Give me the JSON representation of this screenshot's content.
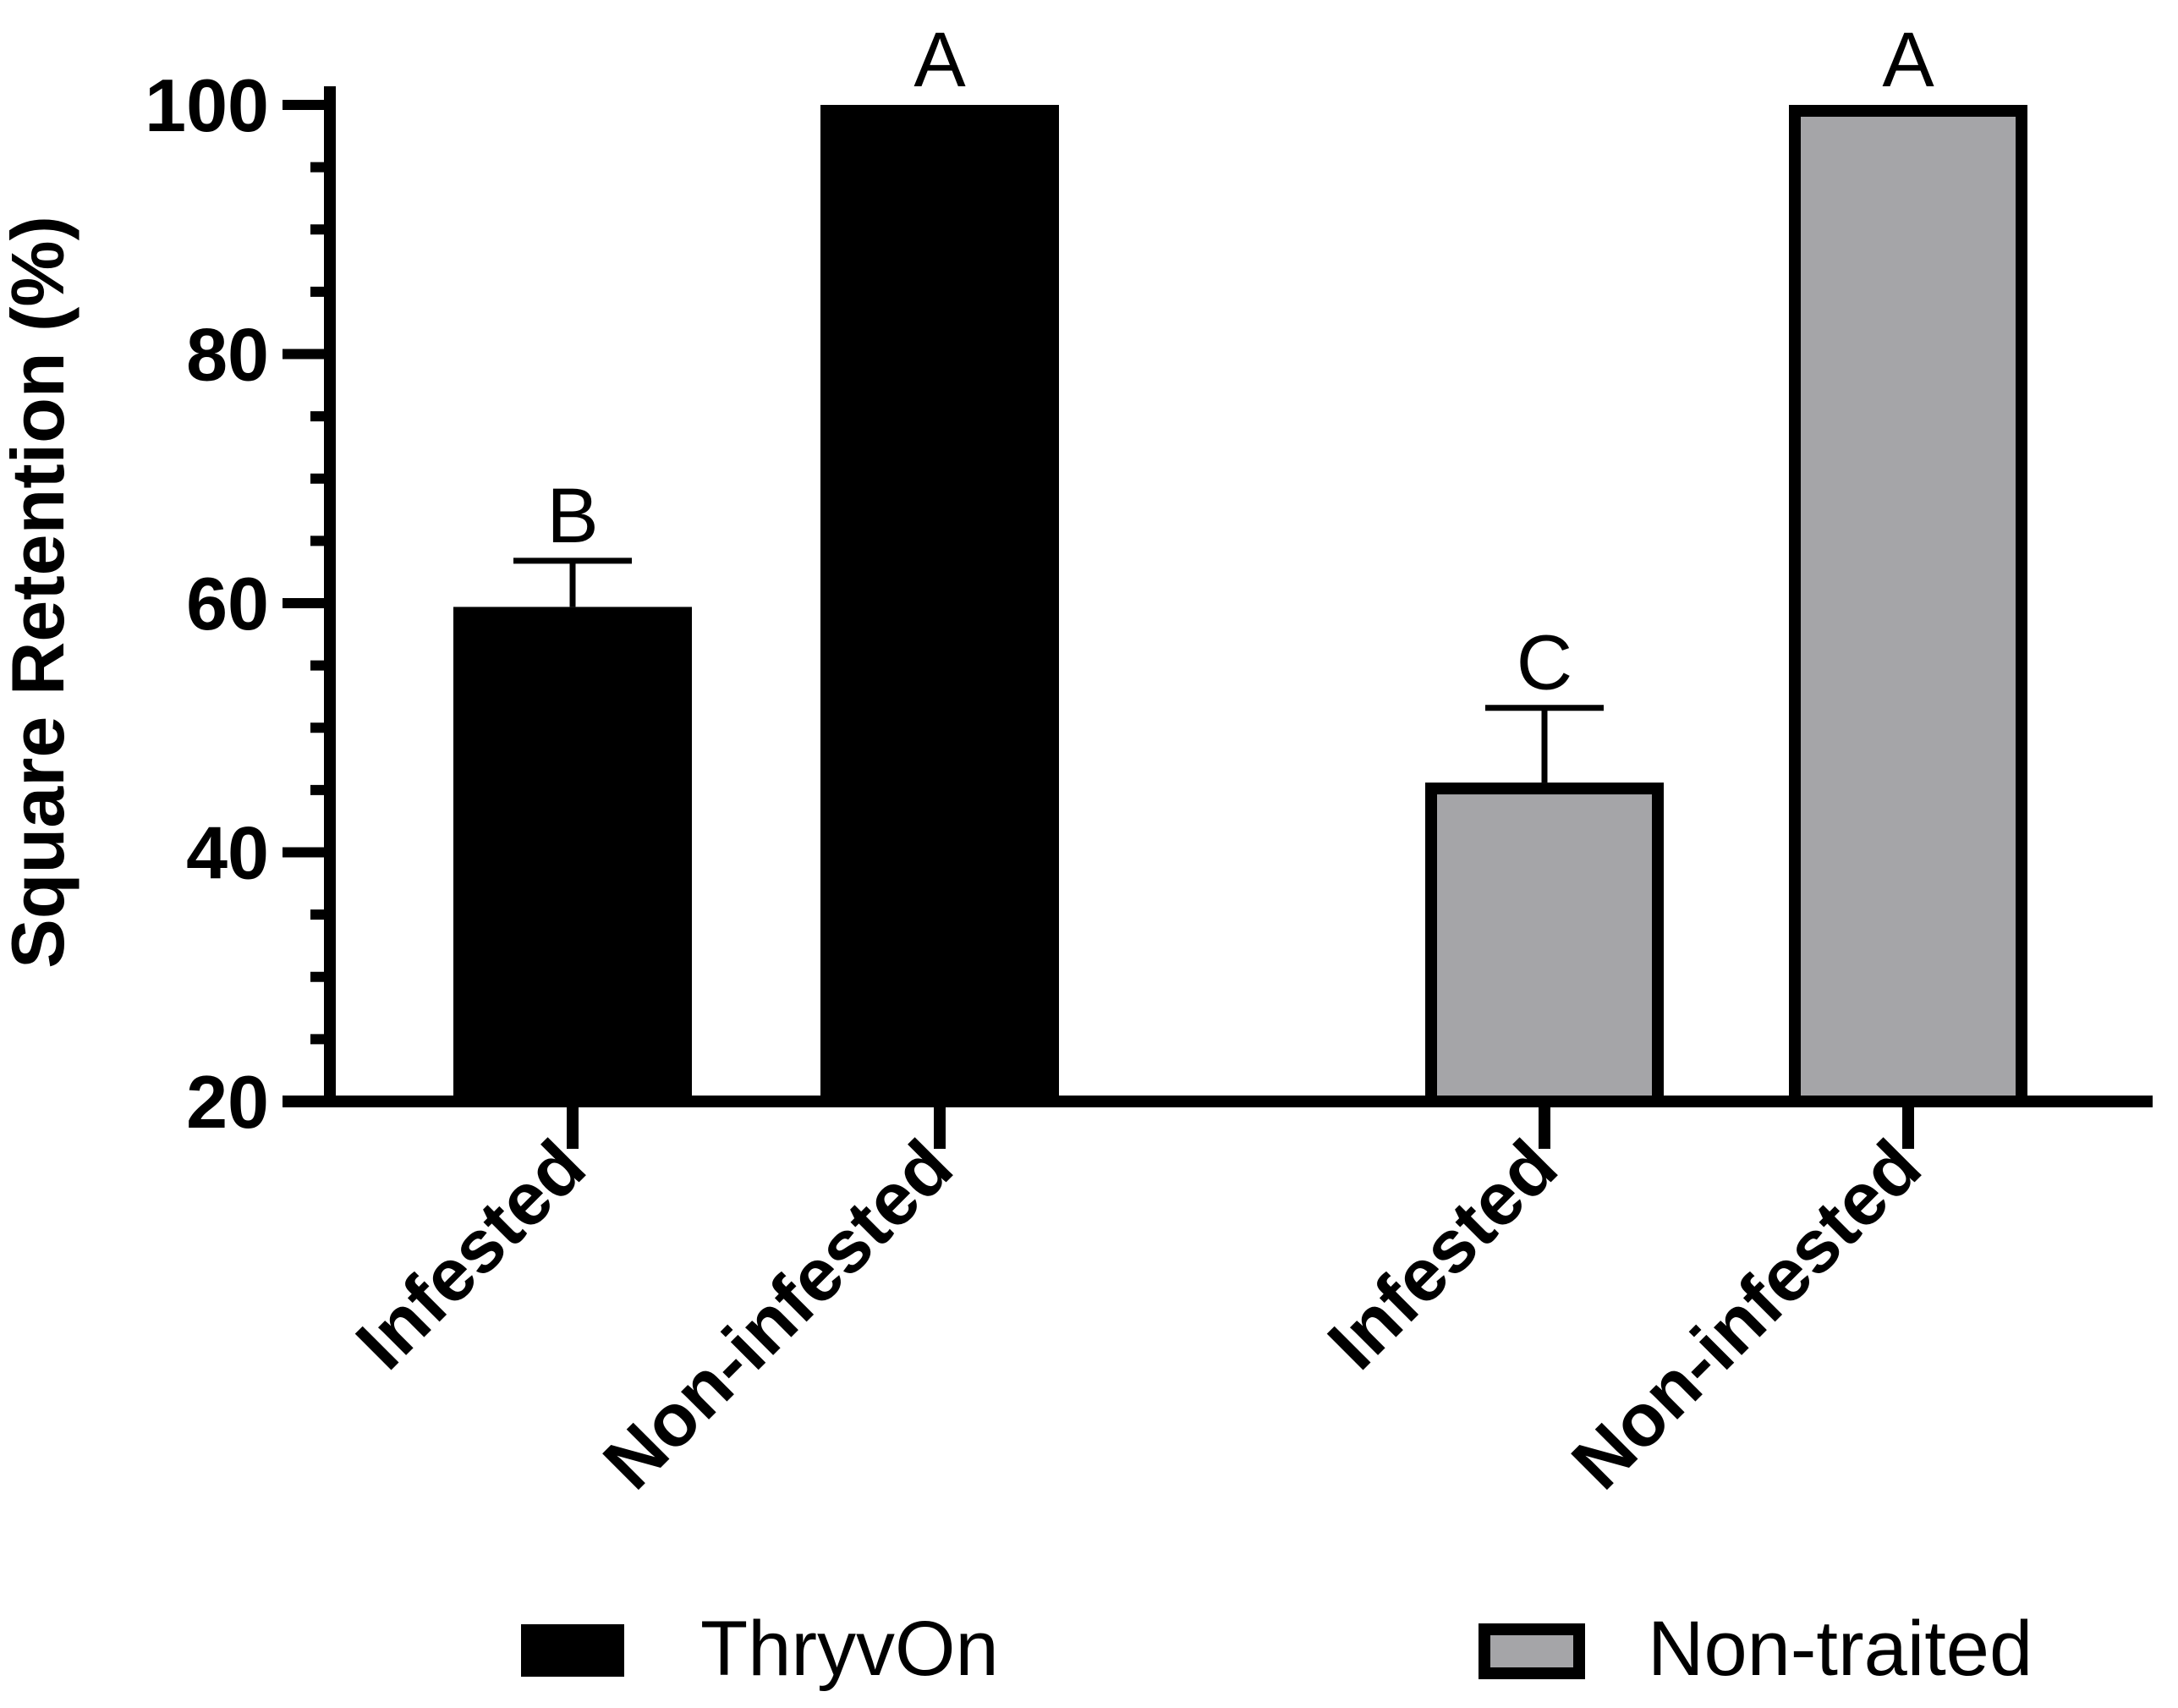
{
  "chart_data": {
    "type": "bar",
    "title": "",
    "xlabel": "",
    "ylabel": "Square Retention (%)",
    "ylim": [
      20,
      100
    ],
    "yticks": [
      20,
      40,
      60,
      80,
      100
    ],
    "grid": false,
    "legend_position": "bottom",
    "series_colors": {
      "ThryvOn": "#000000",
      "Non-traited": "#a5a5a8"
    },
    "bars": [
      {
        "category": "Infested",
        "series": "ThryvOn",
        "value": 59.7,
        "error": 3.7,
        "letter": "B"
      },
      {
        "category": "Non-infested",
        "series": "ThryvOn",
        "value": 100,
        "error": 0,
        "letter": "A"
      },
      {
        "category": "Infested",
        "series": "Non-traited",
        "value": 45.6,
        "error": 6.0,
        "letter": "C"
      },
      {
        "category": "Non-infested",
        "series": "Non-traited",
        "value": 100,
        "error": 0,
        "letter": "A"
      }
    ],
    "legend": [
      {
        "label": "ThryvOn",
        "color": "#000000"
      },
      {
        "label": "Non-traited",
        "color": "#a5a5a8"
      }
    ]
  }
}
